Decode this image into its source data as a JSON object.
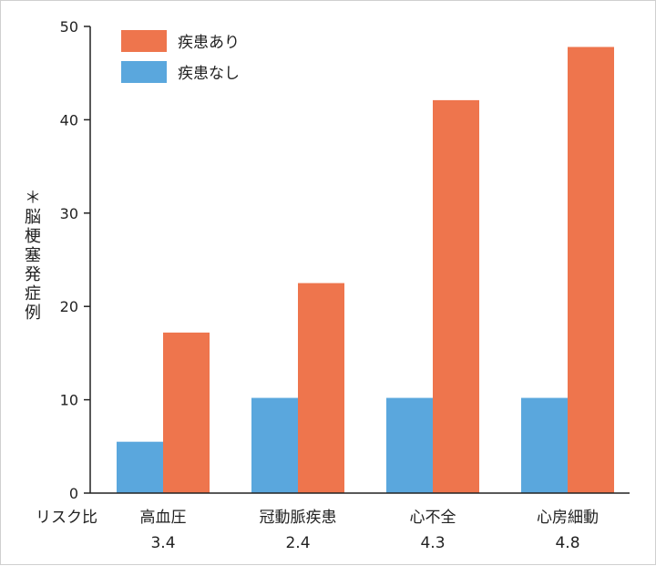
{
  "chart_data": {
    "type": "bar",
    "ylabel": "＊脳梗塞発症例",
    "ylim": [
      0,
      50
    ],
    "yticks": [
      0,
      10,
      20,
      30,
      40,
      50
    ],
    "categories": [
      "高血圧",
      "冠動脈疾患",
      "心不全",
      "心房細動"
    ],
    "risk_ratio_label": "リスク比",
    "risk_ratios": [
      "3.4",
      "2.4",
      "4.3",
      "4.8"
    ],
    "series": [
      {
        "name": "疾患なし",
        "color": "#5aa7dd",
        "values": [
          5.5,
          10.2,
          10.2,
          10.2
        ]
      },
      {
        "name": "疾患あり",
        "color": "#ee754d",
        "values": [
          17.2,
          22.5,
          42.1,
          47.8
        ]
      }
    ],
    "legend": {
      "position": "top-left",
      "order": [
        "疾患あり",
        "疾患なし"
      ]
    },
    "grid": false
  }
}
